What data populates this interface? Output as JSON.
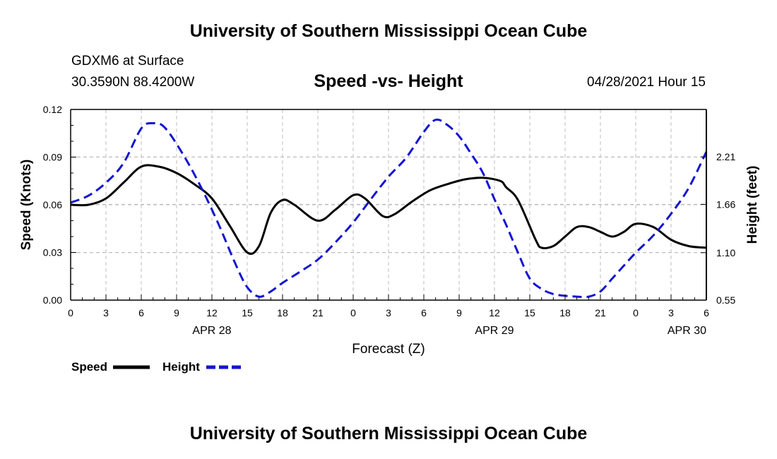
{
  "header": {
    "organization": "University of Southern Mississippi Ocean Cube",
    "station": "GDXM6 at Surface",
    "coordinates": "30.3590N  88.4200W",
    "datetime": "04/28/2021 Hour 15"
  },
  "footer": {
    "organization": "University of Southern Mississippi Ocean Cube"
  },
  "colors": {
    "speed": "#000000",
    "height": "#1414d2",
    "grid": "#bdbdbd"
  },
  "chart_data": {
    "type": "line",
    "title": "Speed -vs- Height",
    "xlabel": "Forecast (Z)",
    "ylabel": "Speed (Knots)",
    "y2label": "Height (feet)",
    "xlim": [
      0,
      54
    ],
    "ylim": [
      0,
      0.12
    ],
    "y2lim": [
      0.55,
      2.76
    ],
    "x_ticks": [
      0,
      3,
      6,
      9,
      12,
      15,
      18,
      21,
      24,
      27,
      30,
      33,
      36,
      39,
      42,
      45,
      48,
      51,
      54
    ],
    "x_tick_labels": [
      "0",
      "3",
      "6",
      "9",
      "12",
      "15",
      "18",
      "21",
      "0",
      "3",
      "6",
      "9",
      "12",
      "15",
      "18",
      "21",
      "0",
      "3",
      "6"
    ],
    "date_labels": [
      {
        "x": 12,
        "label": "APR 28"
      },
      {
        "x": 36,
        "label": "APR 29"
      },
      {
        "x": 54,
        "label": "APR 30"
      }
    ],
    "y_ticks": [
      0.0,
      0.03,
      0.06,
      0.09,
      0.12
    ],
    "y_tick_labels": [
      "0.00",
      "0.03",
      "0.06",
      "0.09",
      "0.12"
    ],
    "y2_ticks": [
      0.55,
      1.1,
      1.66,
      2.21
    ],
    "y2_tick_labels": [
      "0.55",
      "1.10",
      "1.66",
      "2.21"
    ],
    "grid": true,
    "legend": [
      {
        "name": "Speed",
        "style": "solid"
      },
      {
        "name": "Height",
        "style": "dashed"
      }
    ],
    "series": [
      {
        "name": "Speed",
        "axis": "left",
        "style": "solid",
        "x": [
          0,
          1.5,
          3,
          4.5,
          6,
          7.5,
          9,
          10.5,
          12,
          13.5,
          15,
          16,
          17,
          18,
          19,
          21,
          22.5,
          24,
          25,
          26.5,
          27.5,
          29,
          30.5,
          32,
          33.5,
          35,
          36.5,
          37,
          38,
          39.5,
          40,
          41,
          42,
          43,
          44,
          45,
          46,
          47,
          48,
          49.5,
          51,
          52.5,
          54
        ],
        "values": [
          0.06,
          0.06,
          0.064,
          0.074,
          0.084,
          0.084,
          0.08,
          0.073,
          0.064,
          0.047,
          0.03,
          0.034,
          0.055,
          0.063,
          0.06,
          0.05,
          0.057,
          0.066,
          0.064,
          0.053,
          0.054,
          0.062,
          0.069,
          0.073,
          0.076,
          0.077,
          0.075,
          0.071,
          0.063,
          0.038,
          0.033,
          0.034,
          0.04,
          0.046,
          0.046,
          0.043,
          0.04,
          0.043,
          0.048,
          0.046,
          0.038,
          0.034,
          0.033
        ]
      },
      {
        "name": "Height",
        "axis": "right",
        "style": "dashed",
        "x": [
          0,
          1.5,
          3,
          4.5,
          6,
          7,
          8,
          9.5,
          11,
          12.5,
          14,
          15,
          16,
          17,
          18,
          19.5,
          21,
          22.5,
          24,
          25.5,
          27,
          28.5,
          30,
          31,
          32,
          33,
          34,
          35,
          36,
          37,
          38,
          39,
          40,
          41,
          42,
          43,
          44,
          45,
          46,
          47,
          48,
          49.5,
          51,
          52.5,
          54
        ],
        "values": [
          1.68,
          1.76,
          1.91,
          2.14,
          2.54,
          2.6,
          2.55,
          2.25,
          1.88,
          1.45,
          0.97,
          0.7,
          0.59,
          0.65,
          0.75,
          0.88,
          1.02,
          1.22,
          1.45,
          1.72,
          1.98,
          2.2,
          2.5,
          2.64,
          2.58,
          2.45,
          2.25,
          2.03,
          1.72,
          1.42,
          1.1,
          0.8,
          0.68,
          0.62,
          0.6,
          0.59,
          0.59,
          0.65,
          0.8,
          0.95,
          1.1,
          1.3,
          1.55,
          1.85,
          2.27
        ]
      }
    ]
  }
}
